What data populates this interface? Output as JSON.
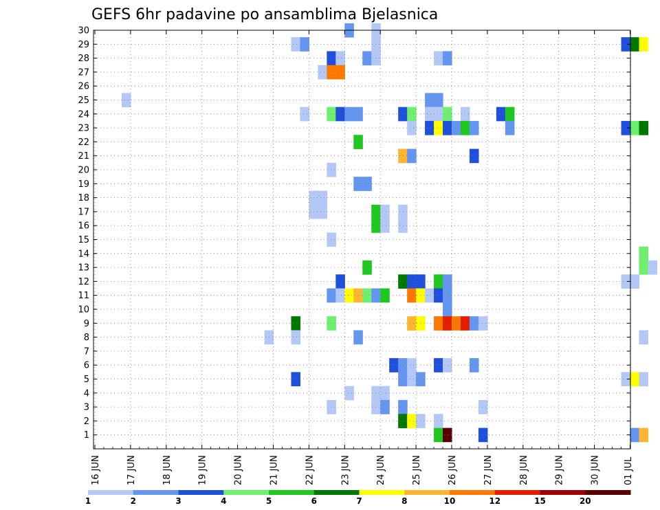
{
  "chart_data": {
    "type": "heatmap",
    "title": "GEFS 6hr padavine po ansamblima Bjelasnica",
    "y_ticks": [
      "1",
      "2",
      "3",
      "4",
      "5",
      "6",
      "7",
      "8",
      "9",
      "10",
      "11",
      "12",
      "13",
      "14",
      "15",
      "16",
      "17",
      "18",
      "19",
      "20",
      "21",
      "22",
      "23",
      "24",
      "25",
      "26",
      "27",
      "28",
      "29",
      "30"
    ],
    "x_ticks": [
      "16 JUN",
      "17 JUN",
      "18 JUN",
      "19 JUN",
      "20 JUN",
      "21 JUN",
      "22 JUN",
      "23 JUN",
      "24 JUN",
      "25 JUN",
      "26 JUN",
      "27 JUN",
      "28 JUN",
      "29 JUN",
      "30 JUN",
      "01 JUL"
    ],
    "x_start_day": 16,
    "x_steps_per_day": 4,
    "grid": true,
    "legend_position": "bottom",
    "legend_levels": [
      "1",
      "2",
      "3",
      "4",
      "5",
      "6",
      "7",
      "8",
      "10",
      "12",
      "15",
      "20"
    ],
    "legend_colors": [
      "#b4c8f8",
      "#6496f0",
      "#1e50dc",
      "#6ef06e",
      "#1ec81e",
      "#007800",
      "#ffff00",
      "#ffb432",
      "#ff7800",
      "#e61e00",
      "#a00000",
      "#5a0000"
    ],
    "cells": [
      {
        "member": 30,
        "step": 28,
        "bin": 2
      },
      {
        "member": 30,
        "step": 31,
        "bin": 1
      },
      {
        "member": 29,
        "step": 22,
        "bin": 1
      },
      {
        "member": 29,
        "step": 23,
        "bin": 2
      },
      {
        "member": 29,
        "step": 31,
        "bin": 1
      },
      {
        "member": 29,
        "step": 59,
        "bin": 3
      },
      {
        "member": 29,
        "step": 60,
        "bin": 6
      },
      {
        "member": 29,
        "step": 61,
        "bin": 7
      },
      {
        "member": 28,
        "step": 26,
        "bin": 3
      },
      {
        "member": 28,
        "step": 27,
        "bin": 1
      },
      {
        "member": 28,
        "step": 30,
        "bin": 2
      },
      {
        "member": 28,
        "step": 31,
        "bin": 1
      },
      {
        "member": 28,
        "step": 38,
        "bin": 1
      },
      {
        "member": 28,
        "step": 39,
        "bin": 2
      },
      {
        "member": 27,
        "step": 25,
        "bin": 1
      },
      {
        "member": 27,
        "step": 26,
        "bin": 9
      },
      {
        "member": 27,
        "step": 27,
        "bin": 9
      },
      {
        "member": 25,
        "step": 3,
        "bin": 1
      },
      {
        "member": 25,
        "step": 37,
        "bin": 2
      },
      {
        "member": 25,
        "step": 38,
        "bin": 2
      },
      {
        "member": 24,
        "step": 23,
        "bin": 1
      },
      {
        "member": 24,
        "step": 26,
        "bin": 4
      },
      {
        "member": 24,
        "step": 27,
        "bin": 3
      },
      {
        "member": 24,
        "step": 28,
        "bin": 2
      },
      {
        "member": 24,
        "step": 29,
        "bin": 2
      },
      {
        "member": 24,
        "step": 34,
        "bin": 3
      },
      {
        "member": 24,
        "step": 35,
        "bin": 4
      },
      {
        "member": 24,
        "step": 37,
        "bin": 1
      },
      {
        "member": 24,
        "step": 38,
        "bin": 1
      },
      {
        "member": 24,
        "step": 39,
        "bin": 4
      },
      {
        "member": 24,
        "step": 41,
        "bin": 1
      },
      {
        "member": 24,
        "step": 45,
        "bin": 3
      },
      {
        "member": 24,
        "step": 46,
        "bin": 5
      },
      {
        "member": 23,
        "step": 35,
        "bin": 1
      },
      {
        "member": 23,
        "step": 37,
        "bin": 3
      },
      {
        "member": 23,
        "step": 38,
        "bin": 7
      },
      {
        "member": 23,
        "step": 39,
        "bin": 3
      },
      {
        "member": 23,
        "step": 40,
        "bin": 2
      },
      {
        "member": 23,
        "step": 41,
        "bin": 5
      },
      {
        "member": 23,
        "step": 42,
        "bin": 2
      },
      {
        "member": 23,
        "step": 46,
        "bin": 2
      },
      {
        "member": 23,
        "step": 59,
        "bin": 3
      },
      {
        "member": 23,
        "step": 60,
        "bin": 4
      },
      {
        "member": 23,
        "step": 61,
        "bin": 6
      },
      {
        "member": 22,
        "step": 29,
        "bin": 5
      },
      {
        "member": 21,
        "step": 34,
        "bin": 8
      },
      {
        "member": 21,
        "step": 35,
        "bin": 2
      },
      {
        "member": 21,
        "step": 42,
        "bin": 3
      },
      {
        "member": 20,
        "step": 26,
        "bin": 1
      },
      {
        "member": 19,
        "step": 29,
        "bin": 2
      },
      {
        "member": 19,
        "step": 30,
        "bin": 2
      },
      {
        "member": 18,
        "step": 24,
        "bin": 1
      },
      {
        "member": 18,
        "step": 25,
        "bin": 1
      },
      {
        "member": 17,
        "step": 24,
        "bin": 1
      },
      {
        "member": 17,
        "step": 25,
        "bin": 1
      },
      {
        "member": 17,
        "step": 31,
        "bin": 5
      },
      {
        "member": 17,
        "step": 32,
        "bin": 1
      },
      {
        "member": 17,
        "step": 34,
        "bin": 1
      },
      {
        "member": 16,
        "step": 31,
        "bin": 5
      },
      {
        "member": 16,
        "step": 32,
        "bin": 1
      },
      {
        "member": 16,
        "step": 34,
        "bin": 1
      },
      {
        "member": 15,
        "step": 26,
        "bin": 1
      },
      {
        "member": 14,
        "step": 61,
        "bin": 4
      },
      {
        "member": 13,
        "step": 30,
        "bin": 5
      },
      {
        "member": 13,
        "step": 61,
        "bin": 4
      },
      {
        "member": 13,
        "step": 62,
        "bin": 1
      },
      {
        "member": 12,
        "step": 27,
        "bin": 3
      },
      {
        "member": 12,
        "step": 34,
        "bin": 6
      },
      {
        "member": 12,
        "step": 35,
        "bin": 3
      },
      {
        "member": 12,
        "step": 36,
        "bin": 3
      },
      {
        "member": 12,
        "step": 38,
        "bin": 5
      },
      {
        "member": 12,
        "step": 39,
        "bin": 2
      },
      {
        "member": 12,
        "step": 59,
        "bin": 1
      },
      {
        "member": 12,
        "step": 60,
        "bin": 1
      },
      {
        "member": 11,
        "step": 26,
        "bin": 2
      },
      {
        "member": 11,
        "step": 27,
        "bin": 1
      },
      {
        "member": 11,
        "step": 28,
        "bin": 7
      },
      {
        "member": 11,
        "step": 29,
        "bin": 8
      },
      {
        "member": 11,
        "step": 30,
        "bin": 4
      },
      {
        "member": 11,
        "step": 31,
        "bin": 2
      },
      {
        "member": 11,
        "step": 32,
        "bin": 5
      },
      {
        "member": 11,
        "step": 35,
        "bin": 9
      },
      {
        "member": 11,
        "step": 36,
        "bin": 7
      },
      {
        "member": 11,
        "step": 37,
        "bin": 1
      },
      {
        "member": 11,
        "step": 38,
        "bin": 3
      },
      {
        "member": 11,
        "step": 39,
        "bin": 2
      },
      {
        "member": 10,
        "step": 39,
        "bin": 2
      },
      {
        "member": 9,
        "step": 22,
        "bin": 6
      },
      {
        "member": 9,
        "step": 26,
        "bin": 4
      },
      {
        "member": 9,
        "step": 35,
        "bin": 8
      },
      {
        "member": 9,
        "step": 36,
        "bin": 7
      },
      {
        "member": 9,
        "step": 38,
        "bin": 9
      },
      {
        "member": 9,
        "step": 39,
        "bin": 10
      },
      {
        "member": 9,
        "step": 40,
        "bin": 9
      },
      {
        "member": 9,
        "step": 41,
        "bin": 10
      },
      {
        "member": 9,
        "step": 42,
        "bin": 2
      },
      {
        "member": 9,
        "step": 43,
        "bin": 1
      },
      {
        "member": 8,
        "step": 19,
        "bin": 1
      },
      {
        "member": 8,
        "step": 22,
        "bin": 1
      },
      {
        "member": 8,
        "step": 29,
        "bin": 2
      },
      {
        "member": 8,
        "step": 61,
        "bin": 1
      },
      {
        "member": 6,
        "step": 33,
        "bin": 3
      },
      {
        "member": 6,
        "step": 34,
        "bin": 2
      },
      {
        "member": 6,
        "step": 35,
        "bin": 1
      },
      {
        "member": 6,
        "step": 38,
        "bin": 3
      },
      {
        "member": 6,
        "step": 39,
        "bin": 1
      },
      {
        "member": 6,
        "step": 42,
        "bin": 2
      },
      {
        "member": 5,
        "step": 22,
        "bin": 3
      },
      {
        "member": 5,
        "step": 34,
        "bin": 2
      },
      {
        "member": 5,
        "step": 35,
        "bin": 1
      },
      {
        "member": 5,
        "step": 36,
        "bin": 2
      },
      {
        "member": 5,
        "step": 59,
        "bin": 1
      },
      {
        "member": 5,
        "step": 60,
        "bin": 7
      },
      {
        "member": 5,
        "step": 61,
        "bin": 1
      },
      {
        "member": 4,
        "step": 28,
        "bin": 1
      },
      {
        "member": 4,
        "step": 31,
        "bin": 1
      },
      {
        "member": 4,
        "step": 32,
        "bin": 1
      },
      {
        "member": 3,
        "step": 26,
        "bin": 1
      },
      {
        "member": 3,
        "step": 31,
        "bin": 1
      },
      {
        "member": 3,
        "step": 32,
        "bin": 2
      },
      {
        "member": 3,
        "step": 34,
        "bin": 2
      },
      {
        "member": 3,
        "step": 43,
        "bin": 1
      },
      {
        "member": 2,
        "step": 34,
        "bin": 6
      },
      {
        "member": 2,
        "step": 35,
        "bin": 7
      },
      {
        "member": 2,
        "step": 36,
        "bin": 1
      },
      {
        "member": 2,
        "step": 38,
        "bin": 1
      },
      {
        "member": 1,
        "step": 38,
        "bin": 5
      },
      {
        "member": 1,
        "step": 39,
        "bin": 12
      },
      {
        "member": 1,
        "step": 43,
        "bin": 3
      },
      {
        "member": 1,
        "step": 60,
        "bin": 2
      },
      {
        "member": 1,
        "step": 61,
        "bin": 8
      }
    ]
  }
}
